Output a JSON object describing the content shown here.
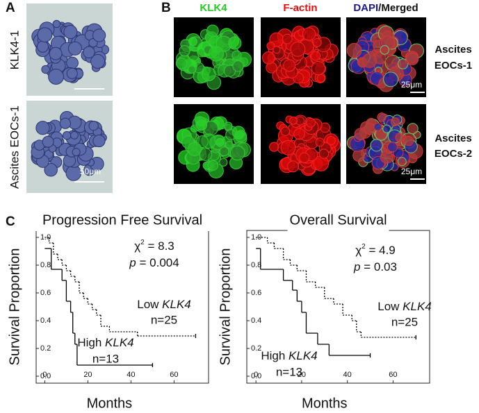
{
  "panels": {
    "a": "A",
    "b": "B",
    "c": "C"
  },
  "panel_a": {
    "rows": [
      "KLK4-1",
      "Ascites EOCs-1"
    ],
    "scale_bar": "50μm"
  },
  "panel_b": {
    "columns": [
      {
        "text": "KLK4",
        "color": "#22cc22"
      },
      {
        "text": "F-actin",
        "color": "#e01010"
      },
      {
        "text": "DAPI",
        "color": "#1a1a8c",
        "suffix": "/Merged"
      }
    ],
    "rows": [
      [
        "Ascites",
        "EOCs-1"
      ],
      [
        "Ascites",
        "EOCs-2"
      ]
    ],
    "scale_bars": [
      "25μm",
      "25μm"
    ]
  },
  "chart_data": [
    {
      "type": "step",
      "title": "Progression Free Survival",
      "xlabel": "Months",
      "ylabel": "Survival Proportion",
      "xlim": [
        -4,
        76
      ],
      "ylim": [
        -0.05,
        1.05
      ],
      "xticks": [
        0,
        20,
        40,
        60
      ],
      "yticks": [
        {
          "value": 0,
          "label": "0.0"
        },
        {
          "value": 0.2,
          "label": "0.2"
        },
        {
          "value": 0.4,
          "label": "0.4"
        },
        {
          "value": 0.6,
          "label": "0.6"
        },
        {
          "value": 0.8,
          "label": "0.8"
        },
        {
          "value": 1,
          "label": "1.0"
        }
      ],
      "stats": {
        "chi": "χ",
        "sup": "2",
        "chi_text": " = 8.3",
        "p": "p",
        "p_text": " = 0.004"
      },
      "series": [
        {
          "label": "Low ",
          "label_italic": "KLK4",
          "n": "n=25",
          "color": "#000000",
          "style": "dotted",
          "x": [
            0,
            2,
            4,
            6,
            8,
            10,
            12,
            14,
            16,
            18,
            20,
            22,
            24,
            26,
            30,
            43,
            70
          ],
          "values": [
            1.0,
            0.96,
            0.88,
            0.84,
            0.8,
            0.76,
            0.72,
            0.68,
            0.6,
            0.56,
            0.52,
            0.48,
            0.44,
            0.36,
            0.32,
            0.29,
            0.29
          ]
        },
        {
          "label": "High ",
          "label_italic": "KLK4",
          "n": "n=13",
          "color": "#000000",
          "style": "solid",
          "x": [
            0,
            3,
            8,
            10,
            12,
            13,
            14,
            15,
            50
          ],
          "values": [
            0.92,
            0.77,
            0.69,
            0.54,
            0.46,
            0.31,
            0.23,
            0.08,
            0.08
          ]
        }
      ]
    },
    {
      "type": "step",
      "title": "Overall Survival",
      "xlabel": "Months",
      "ylabel": "Survival Proportion",
      "xlim": [
        -4,
        76
      ],
      "ylim": [
        -0.05,
        1.05
      ],
      "xticks": [
        0,
        20,
        40,
        60
      ],
      "yticks": [
        {
          "value": 0,
          "label": "0.0"
        },
        {
          "value": 0.2,
          "label": "0.2"
        },
        {
          "value": 0.4,
          "label": "0.4"
        },
        {
          "value": 0.6,
          "label": "0.6"
        },
        {
          "value": 0.8,
          "label": "0.8"
        },
        {
          "value": 1,
          "label": "1.0"
        }
      ],
      "stats": {
        "chi": "χ",
        "sup": "2",
        "chi_text": " = 4.9",
        "p": "p",
        "p_text": " = 0.03"
      },
      "series": [
        {
          "label": "Low ",
          "label_italic": "KLK4",
          "n": "n=25",
          "color": "#000000",
          "style": "dotted",
          "x": [
            0,
            5,
            8,
            12,
            15,
            18,
            22,
            26,
            30,
            34,
            38,
            42,
            44,
            46,
            70
          ],
          "values": [
            1.0,
            0.96,
            0.92,
            0.84,
            0.8,
            0.76,
            0.68,
            0.64,
            0.56,
            0.52,
            0.44,
            0.4,
            0.32,
            0.28,
            0.28
          ]
        },
        {
          "label": "High ",
          "label_italic": "KLK4",
          "n": "n=13",
          "color": "#000000",
          "style": "solid",
          "x": [
            0,
            2,
            12,
            16,
            18,
            20,
            22,
            27,
            32,
            50
          ],
          "values": [
            0.92,
            0.77,
            0.69,
            0.62,
            0.54,
            0.46,
            0.31,
            0.23,
            0.15,
            0.15
          ]
        }
      ]
    }
  ]
}
